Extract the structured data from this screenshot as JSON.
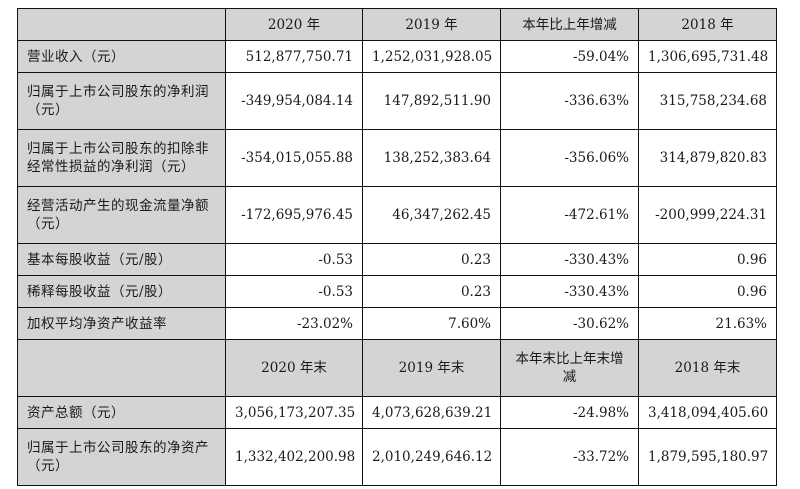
{
  "table": {
    "header1": [
      "",
      "2020 年",
      "2019 年",
      "本年比上年增减",
      "2018 年"
    ],
    "rows1": [
      {
        "label": "营业收入（元）",
        "v2020": "512,877,750.71",
        "v2019": "1,252,031,928.05",
        "change": "-59.04%",
        "v2018": "1,306,695,731.48"
      },
      {
        "label": "归属于上市公司股东的净利润（元）",
        "v2020": "-349,954,084.14",
        "v2019": "147,892,511.90",
        "change": "-336.63%",
        "v2018": "315,758,234.68"
      },
      {
        "label": "归属于上市公司股东的扣除非经常性损益的净利润（元）",
        "v2020": "-354,015,055.88",
        "v2019": "138,252,383.64",
        "change": "-356.06%",
        "v2018": "314,879,820.83"
      },
      {
        "label": "经营活动产生的现金流量净额（元）",
        "v2020": "-172,695,976.45",
        "v2019": "46,347,262.45",
        "change": "-472.61%",
        "v2018": "-200,999,224.31"
      },
      {
        "label": "基本每股收益（元/股）",
        "v2020": "-0.53",
        "v2019": "0.23",
        "change": "-330.43%",
        "v2018": "0.96"
      },
      {
        "label": "稀释每股收益（元/股）",
        "v2020": "-0.53",
        "v2019": "0.23",
        "change": "-330.43%",
        "v2018": "0.96"
      },
      {
        "label": "加权平均净资产收益率",
        "v2020": "-23.02%",
        "v2019": "7.60%",
        "change": "-30.62%",
        "v2018": "21.63%"
      }
    ],
    "header2": [
      "",
      "2020 年末",
      "2019 年末",
      "本年末比上年末增减",
      "2018 年末"
    ],
    "rows2": [
      {
        "label": "资产总额（元）",
        "v2020": "3,056,173,207.35",
        "v2019": "4,073,628,639.21",
        "change": "-24.98%",
        "v2018": "3,418,094,405.60"
      },
      {
        "label": "归属于上市公司股东的净资产（元）",
        "v2020": "1,332,402,200.98",
        "v2019": "2,010,249,646.12",
        "change": "-33.72%",
        "v2018": "1,879,595,180.97"
      }
    ]
  }
}
